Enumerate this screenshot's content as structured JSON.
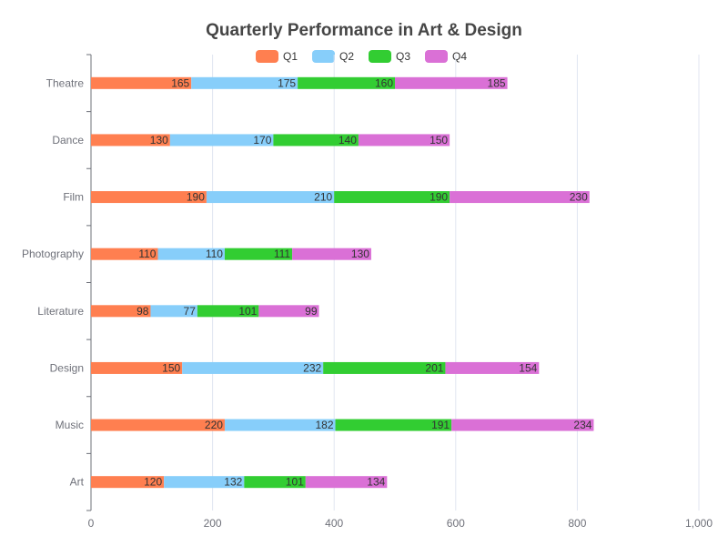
{
  "chart_data": {
    "type": "bar",
    "orientation": "horizontal",
    "stacked": true,
    "title": "Quarterly Performance in Art & Design",
    "categories": [
      "Art",
      "Music",
      "Design",
      "Literature",
      "Photography",
      "Film",
      "Dance",
      "Theatre"
    ],
    "series": [
      {
        "name": "Q1",
        "color": "#ff7f50",
        "values": [
          120,
          220,
          150,
          98,
          110,
          190,
          130,
          165
        ]
      },
      {
        "name": "Q2",
        "color": "#87cefa",
        "values": [
          132,
          182,
          232,
          77,
          110,
          210,
          170,
          175
        ]
      },
      {
        "name": "Q3",
        "color": "#32cd32",
        "values": [
          101,
          191,
          201,
          101,
          111,
          190,
          140,
          160
        ]
      },
      {
        "name": "Q4",
        "color": "#da70d6",
        "values": [
          134,
          234,
          154,
          99,
          130,
          230,
          150,
          185
        ]
      }
    ],
    "xlim": [
      0,
      1000
    ],
    "x_ticks": [
      0,
      200,
      400,
      600,
      800,
      1000
    ],
    "x_tick_labels": [
      "0",
      "200",
      "400",
      "600",
      "800",
      "1,000"
    ],
    "legend_position": "top-center",
    "grid": true
  }
}
